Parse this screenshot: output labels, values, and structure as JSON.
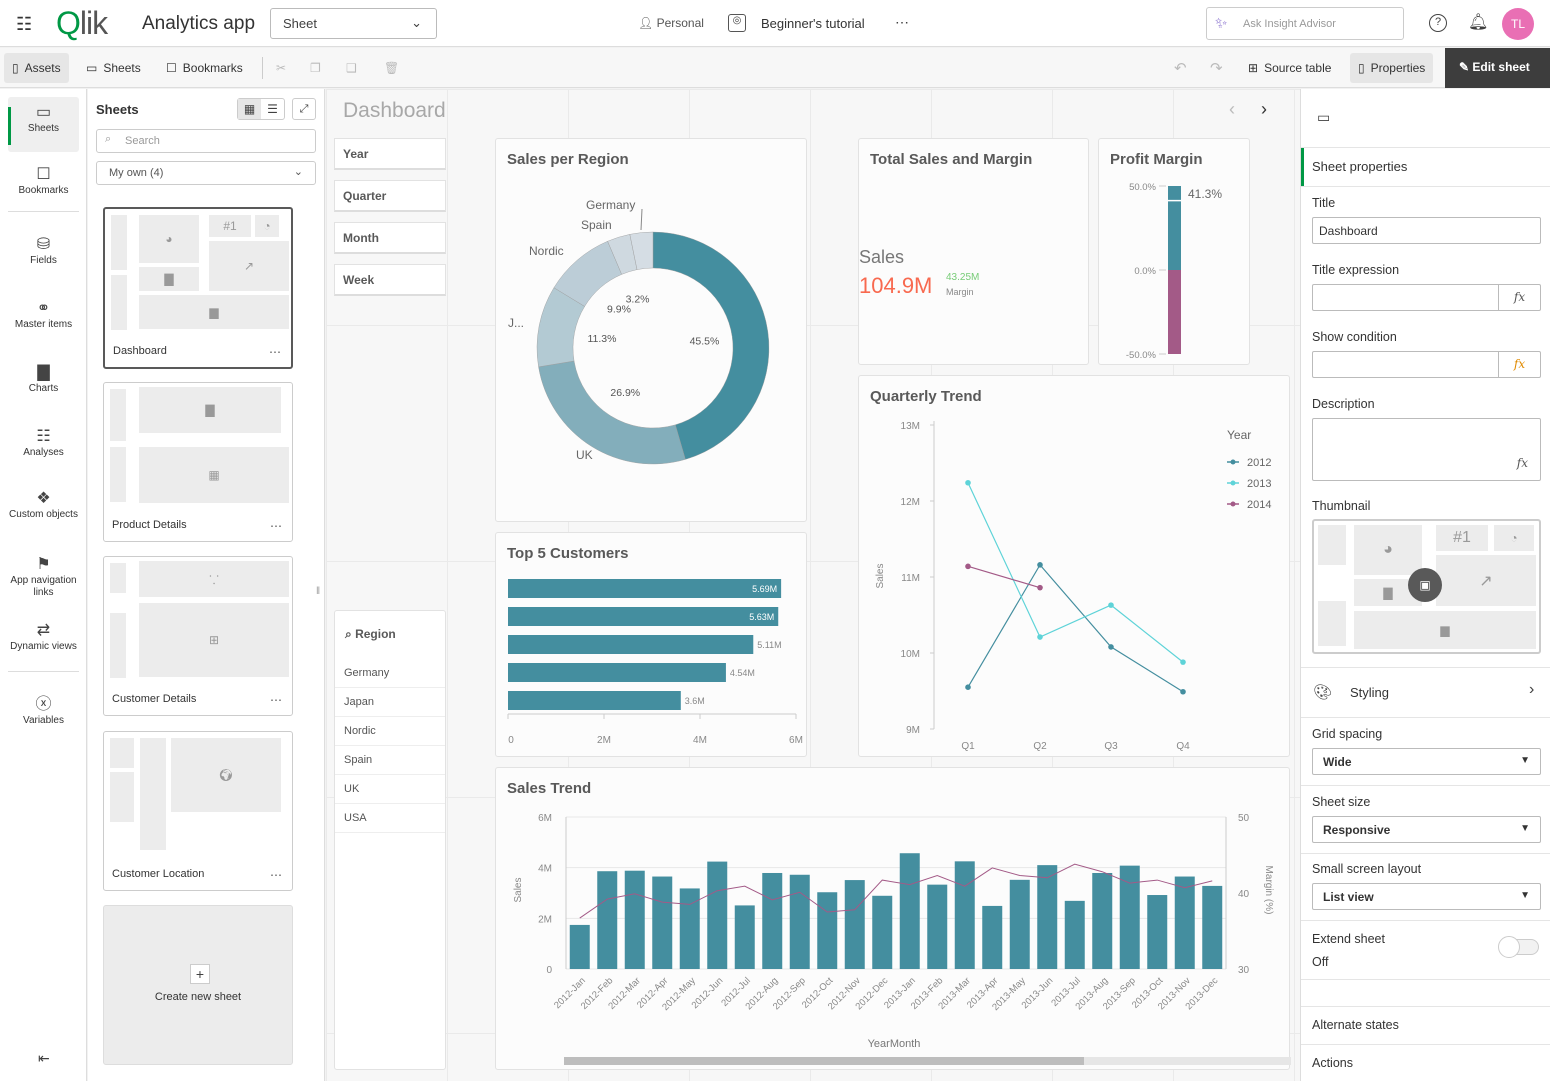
{
  "topbar": {
    "app_title": "Analytics app",
    "view_select": "Sheet",
    "space": "Personal",
    "tutorial": "Beginner's tutorial",
    "more": "⋯",
    "insight_placeholder": "Ask Insight Advisor",
    "avatar": "TL",
    "logo": "Qlik"
  },
  "toolbar": {
    "assets": "Assets",
    "sheets": "Sheets",
    "bookmarks": "Bookmarks",
    "source_table": "Source table",
    "properties": "Properties",
    "edit_sheet": "Edit sheet"
  },
  "rail": [
    {
      "label": "Sheets",
      "icon": "sheet-icon"
    },
    {
      "label": "Bookmarks",
      "icon": "bookmark-icon"
    },
    {
      "label": "Fields",
      "icon": "database-icon"
    },
    {
      "label": "Master items",
      "icon": "link-icon"
    },
    {
      "label": "Charts",
      "icon": "chart-icon"
    },
    {
      "label": "Analyses",
      "icon": "analysis-icon"
    },
    {
      "label": "Custom objects",
      "icon": "puzzle-icon"
    },
    {
      "label": "App navigation links",
      "icon": "signpost-icon"
    },
    {
      "label": "Dynamic views",
      "icon": "dynamic-icon"
    },
    {
      "label": "Variables",
      "icon": "variable-icon"
    }
  ],
  "sheets_panel": {
    "title": "Sheets",
    "search_placeholder": "Search",
    "filter": "My own (4)",
    "cards": [
      "Dashboard",
      "Product Details",
      "Customer Details",
      "Customer Location"
    ],
    "create": "Create new sheet"
  },
  "main": {
    "title": "Dashboard",
    "filters": [
      "Year",
      "Quarter",
      "Month",
      "Week"
    ],
    "region": {
      "title": "Region",
      "items": [
        "Germany",
        "Japan",
        "Nordic",
        "Spain",
        "UK",
        "USA"
      ]
    }
  },
  "kpi": {
    "title": "Total Sales and Margin",
    "label": "Sales",
    "value": "104.9M",
    "sub_value": "43.25M",
    "sub_label": "Margin",
    "value_color": "#f8694f",
    "sub_color": "#77cc77"
  },
  "colors": {
    "teal": "#448e9f",
    "purple": "#a35a87",
    "cyan": "#5ed3d8",
    "dark": "#3d3d3d",
    "accent": "#009845"
  },
  "chart_data": [
    {
      "type": "pie",
      "title": "Sales per Region",
      "donut": true,
      "slices": [
        {
          "label": "",
          "value": 45.5,
          "text": "45.5%"
        },
        {
          "label": "UK",
          "value": 26.9,
          "text": "26.9%"
        },
        {
          "label": "J...",
          "value": 11.3,
          "text": "11.3%"
        },
        {
          "label": "Nordic",
          "value": 9.9,
          "text": "9.9%"
        },
        {
          "label": "Spain",
          "value": 3.2,
          "text": "3.2%"
        },
        {
          "label": "Germany",
          "value": 3.2,
          "text": ""
        }
      ],
      "colors": [
        "#448e9f",
        "#83aebb",
        "#b3cad3",
        "#bccdd7",
        "#cfd9e0",
        "#d5dde4"
      ]
    },
    {
      "type": "bar",
      "orientation": "horizontal",
      "title": "Top 5 Customers",
      "values": [
        5.69,
        5.63,
        5.11,
        4.54,
        3.6
      ],
      "value_labels": [
        "5.69M",
        "5.63M",
        "5.11M",
        "4.54M",
        "3.6M"
      ],
      "xticks": [
        "0",
        "2M",
        "4M",
        "6M"
      ],
      "xlim": [
        0,
        6
      ]
    },
    {
      "type": "gauge",
      "title": "Profit Margin",
      "value": 41.3,
      "value_label": "41.3%",
      "ticks": [
        "50.0%",
        "0.0%",
        "-50.0%"
      ],
      "range": [
        -50,
        50
      ]
    },
    {
      "type": "line",
      "title": "Quarterly Trend",
      "categories": [
        "Q1",
        "Q2",
        "Q3",
        "Q4"
      ],
      "ylabel": "Sales",
      "yticks": [
        "9M",
        "10M",
        "11M",
        "12M",
        "13M"
      ],
      "ylim": [
        9,
        13
      ],
      "legend_title": "Year",
      "legend": "right",
      "series": [
        {
          "name": "2012",
          "values": [
            9.55,
            11.16,
            10.08,
            9.49
          ],
          "color": "#448e9f"
        },
        {
          "name": "2013",
          "values": [
            12.24,
            10.21,
            10.63,
            9.88
          ],
          "color": "#5ed3d8"
        },
        {
          "name": "2014",
          "values": [
            11.14,
            10.86,
            null,
            null
          ],
          "color": "#a35a87"
        }
      ]
    },
    {
      "type": "bar",
      "title": "Sales Trend",
      "xlabel": "YearMonth",
      "ylabel": "Sales",
      "y2label": "Margin (%)",
      "yticks": [
        "0",
        "2M",
        "4M",
        "6M"
      ],
      "ylim": [
        0,
        6
      ],
      "y2ticks": [
        "30",
        "40",
        "50"
      ],
      "y2lim": [
        30,
        50
      ],
      "categories": [
        "2012-Jan",
        "2012-Feb",
        "2012-Mar",
        "2012-Apr",
        "2012-May",
        "2012-Jun",
        "2012-Jul",
        "2012-Aug",
        "2012-Sep",
        "2012-Oct",
        "2012-Nov",
        "2012-Dec",
        "2013-Jan",
        "2013-Feb",
        "2013-Mar",
        "2013-Apr",
        "2013-May",
        "2013-Jun",
        "2013-Jul",
        "2013-Aug",
        "2013-Sep",
        "2013-Oct",
        "2013-Nov",
        "2013-Dec"
      ],
      "sales": [
        1.74,
        3.86,
        3.88,
        3.65,
        3.18,
        4.24,
        2.51,
        3.79,
        3.72,
        3.03,
        3.51,
        2.89,
        4.57,
        3.33,
        4.25,
        2.49,
        3.52,
        4.1,
        2.69,
        3.79,
        4.08,
        2.92,
        3.65,
        3.28
      ],
      "margin": [
        36.7,
        39.2,
        39.9,
        38.8,
        38.5,
        40.3,
        40.9,
        39.1,
        40.1,
        37.5,
        37.8,
        41.7,
        41.1,
        42.3,
        40.9,
        43.3,
        42.3,
        42.0,
        43.8,
        42.8,
        41.3,
        41.7,
        40.7,
        41.6
      ]
    }
  ],
  "properties": {
    "header": "Sheet properties",
    "title_label": "Title",
    "title_value": "Dashboard",
    "title_expr": "Title expression",
    "show_cond": "Show condition",
    "description": "Description",
    "thumbnail": "Thumbnail",
    "styling": "Styling",
    "grid_spacing": "Grid spacing",
    "grid_value": "Wide",
    "sheet_size": "Sheet size",
    "size_value": "Responsive",
    "small_layout": "Small screen layout",
    "small_value": "List view",
    "extend": "Extend sheet",
    "extend_value": "Off",
    "alt_states": "Alternate states",
    "actions": "Actions",
    "fx": "fx"
  }
}
